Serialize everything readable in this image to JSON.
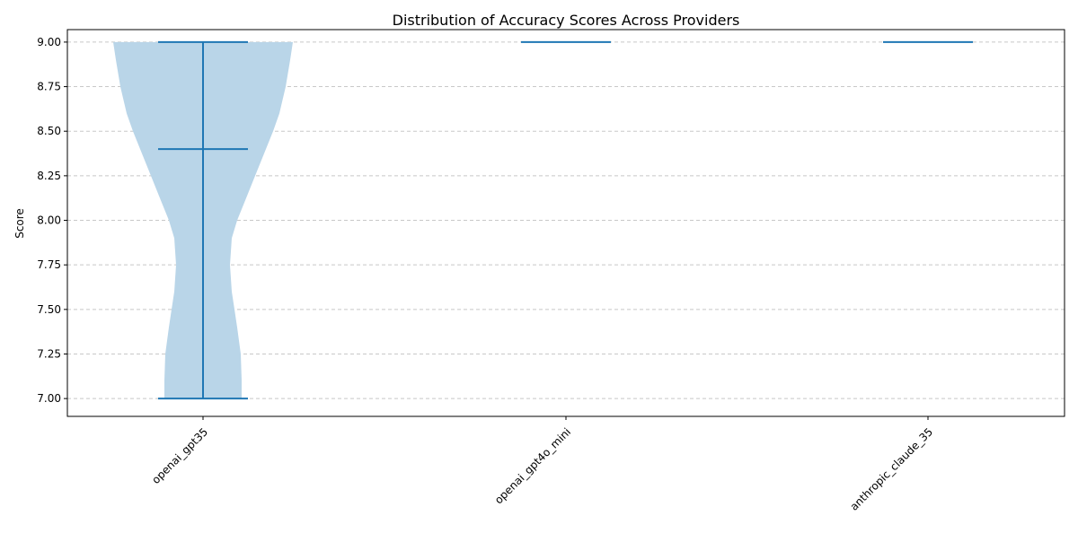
{
  "chart_data": {
    "type": "violin",
    "title": "Distribution of Accuracy Scores Across Providers",
    "xlabel": "",
    "ylabel": "Score",
    "categories": [
      "openai_gpt35",
      "openai_gpt4o_mini",
      "anthropic_claude_35"
    ],
    "ylim": [
      6.9,
      9.07
    ],
    "yticks": [
      7.0,
      7.25,
      7.5,
      7.75,
      8.0,
      8.25,
      8.5,
      8.75,
      9.0
    ],
    "ytick_labels": [
      "7.00",
      "7.25",
      "7.50",
      "7.75",
      "8.00",
      "8.25",
      "8.50",
      "8.75",
      "9.00"
    ],
    "grid": "y-axis dashed",
    "xtick_rotation_deg": 45,
    "series": [
      {
        "category": "openai_gpt35",
        "min": 7.0,
        "max": 9.0,
        "mean": 8.4,
        "density_profile": [
          [
            7.0,
            0.43
          ],
          [
            7.1,
            0.43
          ],
          [
            7.25,
            0.42
          ],
          [
            7.4,
            0.38
          ],
          [
            7.5,
            0.35
          ],
          [
            7.6,
            0.32
          ],
          [
            7.75,
            0.3
          ],
          [
            7.9,
            0.32
          ],
          [
            8.0,
            0.38
          ],
          [
            8.1,
            0.46
          ],
          [
            8.25,
            0.58
          ],
          [
            8.4,
            0.7
          ],
          [
            8.5,
            0.78
          ],
          [
            8.6,
            0.85
          ],
          [
            8.75,
            0.92
          ],
          [
            8.9,
            0.97
          ],
          [
            9.0,
            1.0
          ]
        ]
      },
      {
        "category": "openai_gpt4o_mini",
        "min": 9.0,
        "max": 9.0,
        "mean": 9.0,
        "density_profile": []
      },
      {
        "category": "anthropic_claude_35",
        "min": 9.0,
        "max": 9.0,
        "mean": 9.0,
        "density_profile": []
      }
    ],
    "colors": {
      "body_fill": "#b9d5e8",
      "line": "#1f77b4",
      "grid": "#c8c8c8",
      "axis": "#000000"
    }
  }
}
